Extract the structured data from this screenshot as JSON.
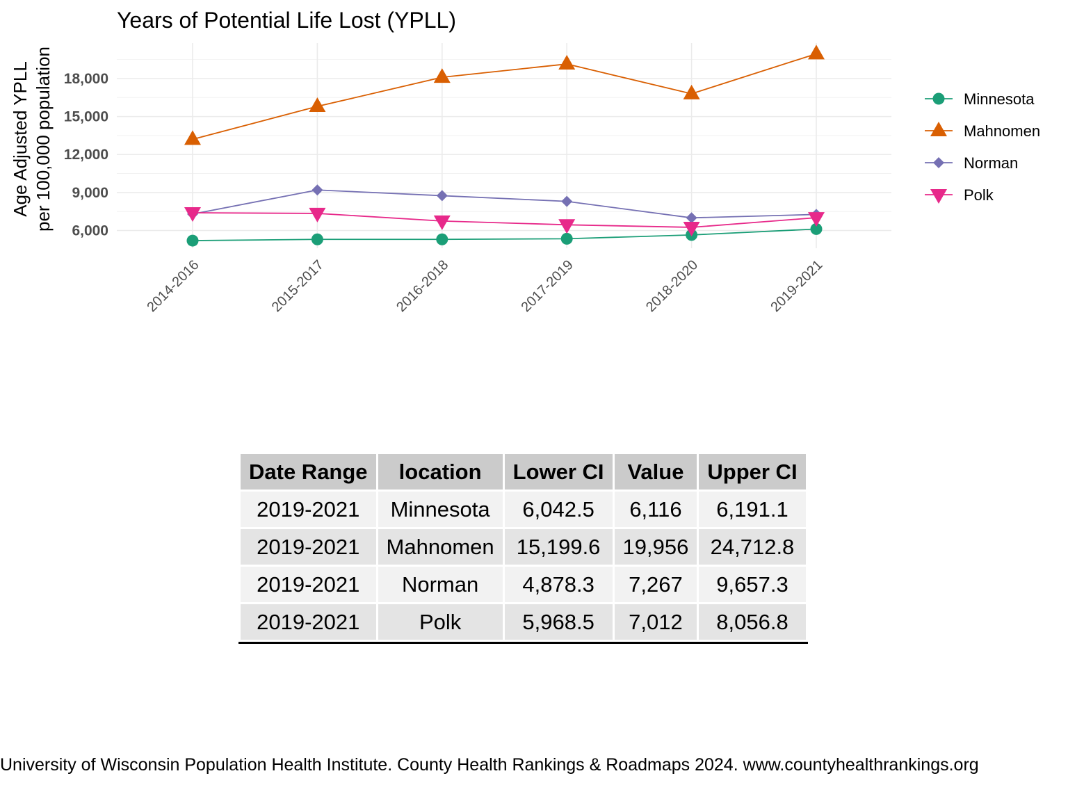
{
  "chart_data": {
    "type": "line",
    "title": "Years of Potential Life Lost (YPLL)",
    "ylabel_lines": [
      "Age Adjusted YPLL",
      "per 100,000 population"
    ],
    "xlabel": "",
    "categories": [
      "2014-2016",
      "2015-2017",
      "2016-2018",
      "2017-2019",
      "2018-2020",
      "2019-2021"
    ],
    "y_ticks": [
      6000,
      9000,
      12000,
      15000,
      18000
    ],
    "y_tick_labels": [
      "6,000",
      "9,000",
      "12,000",
      "15,000",
      "18,000"
    ],
    "ylim": [
      4600,
      20800
    ],
    "grid": true,
    "legend_position": "right",
    "series": [
      {
        "name": "Minnesota",
        "color": "#1b9e77",
        "marker": "circle",
        "values": [
          5200,
          5300,
          5300,
          5350,
          5650,
          6116
        ]
      },
      {
        "name": "Mahnomen",
        "color": "#d95f02",
        "marker": "triangle-up",
        "values": [
          13200,
          15800,
          18100,
          19150,
          16800,
          19956
        ]
      },
      {
        "name": "Norman",
        "color": "#7570b3",
        "marker": "diamond",
        "values": [
          7300,
          9200,
          8750,
          8300,
          7000,
          7267
        ]
      },
      {
        "name": "Polk",
        "color": "#e7298a",
        "marker": "triangle-down",
        "values": [
          7400,
          7350,
          6750,
          6450,
          6250,
          7012
        ]
      }
    ]
  },
  "table": {
    "headers": [
      "Date Range",
      "location",
      "Lower CI",
      "Value",
      "Upper CI"
    ],
    "rows": [
      [
        "2019-2021",
        "Minnesota",
        "6,042.5",
        "6,116",
        "6,191.1"
      ],
      [
        "2019-2021",
        "Mahnomen",
        "15,199.6",
        "19,956",
        "24,712.8"
      ],
      [
        "2019-2021",
        "Norman",
        "4,878.3",
        "7,267",
        "9,657.3"
      ],
      [
        "2019-2021",
        "Polk",
        "5,968.5",
        "7,012",
        "8,056.8"
      ]
    ]
  },
  "caption": "University of Wisconsin Population Health Institute. County Health Rankings & Roadmaps 2024. www.countyhealthrankings.org"
}
